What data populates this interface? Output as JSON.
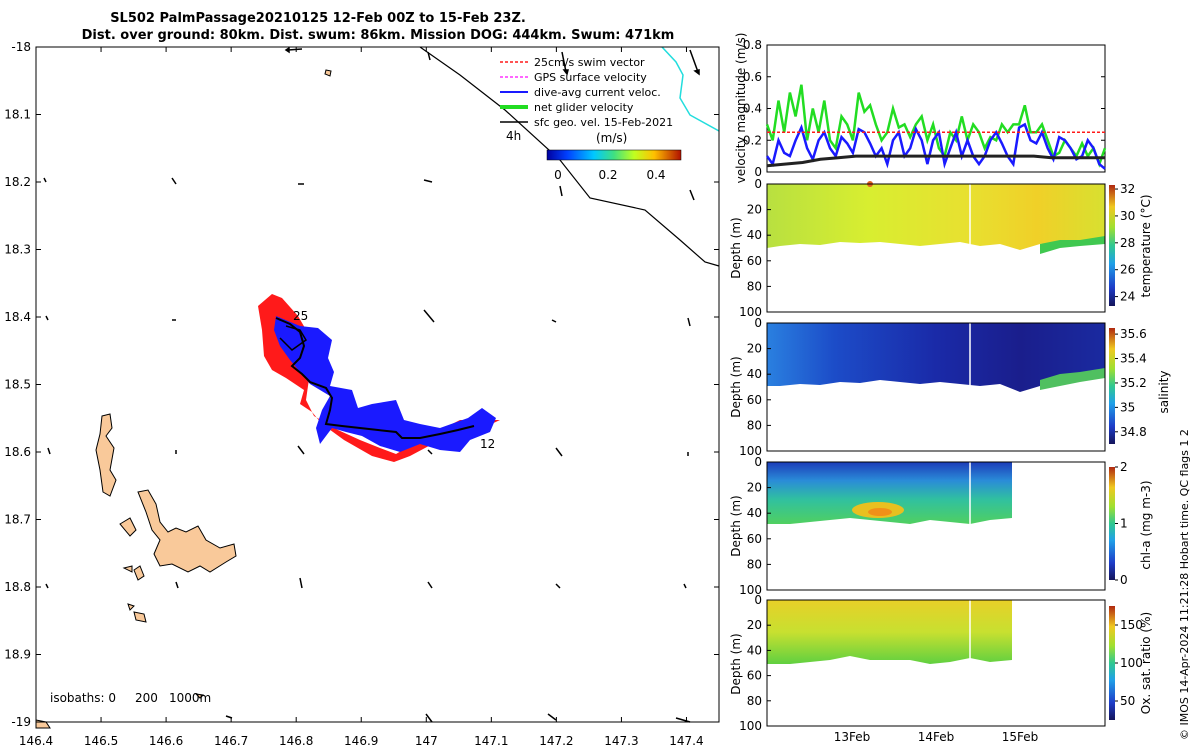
{
  "title_line1": "SL502 PalmPassage20210125 12-Feb 00Z to 15-Feb 23Z.",
  "title_line2": "Dist. over ground: 80km. Dist. swum: 86km. Mission DOG: 444km. Swum: 471km",
  "credit": "© IMOS 14-Apr-2024 11:21:28 Hobart time. QC flags 1  2",
  "colors": {
    "land": "#f9c99a",
    "red": "#ff1a1a",
    "blue": "#1a1aff",
    "green": "#22dd22",
    "cyan": "#22dddd",
    "magenta": "#ff33ff"
  },
  "map": {
    "x_ticks": [
      "146.4",
      "146.5",
      "146.6",
      "146.7",
      "146.8",
      "146.9",
      "147",
      "147.1",
      "147.2",
      "147.3",
      "147.4"
    ],
    "y_ticks": [
      "-18",
      "18.1",
      "18.2",
      "18.3",
      "18.4",
      "18.5",
      "18.6",
      "18.7",
      "18.8",
      "18.9",
      "-19"
    ],
    "xlim": [
      146.4,
      147.45
    ],
    "ylim": [
      -19.0,
      -17.98
    ],
    "legend": [
      {
        "label": "25cm/s swim vector",
        "color": "#ff1a1a",
        "style": "dashed"
      },
      {
        "label": "GPS surface velocity",
        "color": "#ff33ff",
        "style": "dashed"
      },
      {
        "label": "dive-avg current veloc.",
        "color": "#1a1aff",
        "style": "solid"
      },
      {
        "label": "net glider velocity",
        "color": "#22dd22",
        "style": "thick"
      },
      {
        "label": "sfc geo. vel. 15-Feb-2021",
        "color": "#000000",
        "style": "solid"
      }
    ],
    "colorbar_unit": "(m/s)",
    "colorbar_ticks": [
      "0",
      "0.2",
      "0.4"
    ],
    "annotations": {
      "start": "4h",
      "mid": "25",
      "end": "12"
    },
    "isobaths_label": "isobaths: 0",
    "isobath_levels": [
      "200",
      "1000m"
    ]
  },
  "chart_data": [
    {
      "type": "line",
      "title": "",
      "ylabel": "velocity magnitude (m/s)",
      "ylim": [
        0,
        0.8
      ],
      "y_ticks": [
        "0",
        "0.2",
        "0.4",
        "0.6",
        "0.8"
      ],
      "series": [
        {
          "name": "net glider velocity",
          "color": "#22dd22",
          "values": [
            0.3,
            0.2,
            0.45,
            0.25,
            0.5,
            0.35,
            0.55,
            0.2,
            0.4,
            0.25,
            0.45,
            0.2,
            0.15,
            0.35,
            0.3,
            0.2,
            0.5,
            0.38,
            0.42,
            0.3,
            0.2,
            0.25,
            0.4,
            0.28,
            0.3,
            0.22,
            0.3,
            0.35,
            0.2,
            0.3,
            0.15,
            0.1,
            0.25,
            0.2,
            0.35,
            0.2,
            0.3,
            0.25,
            0.15,
            0.22,
            0.2,
            0.3,
            0.25,
            0.3,
            0.3,
            0.42,
            0.25,
            0.25,
            0.3,
            0.2,
            0.1,
            0.12,
            0.2,
            0.15,
            0.1,
            0.18,
            0.1,
            0.15,
            0.05,
            0.15
          ]
        },
        {
          "name": "dive-avg current veloc.",
          "color": "#1a1aff",
          "values": [
            0.1,
            0.05,
            0.2,
            0.12,
            0.1,
            0.2,
            0.28,
            0.15,
            0.08,
            0.2,
            0.25,
            0.15,
            0.1,
            0.22,
            0.18,
            0.12,
            0.27,
            0.25,
            0.18,
            0.1,
            0.15,
            0.05,
            0.2,
            0.25,
            0.1,
            0.15,
            0.27,
            0.2,
            0.05,
            0.2,
            0.25,
            0.05,
            0.15,
            0.25,
            0.1,
            0.2,
            0.1,
            0.05,
            0.1,
            0.2,
            0.25,
            0.18,
            0.1,
            0.05,
            0.28,
            0.3,
            0.2,
            0.18,
            0.25,
            0.15,
            0.08,
            0.22,
            0.2,
            0.15,
            0.08,
            0.1,
            0.2,
            0.15,
            0.05,
            0.02
          ]
        },
        {
          "name": "25cm/s swim vector",
          "color": "#ff1a1a",
          "values": [
            0.25,
            0.25
          ]
        },
        {
          "name": "sfc geo",
          "color": "#222222",
          "values": [
            0.04,
            0.05,
            0.06,
            0.08,
            0.09,
            0.1,
            0.1,
            0.1,
            0.1,
            0.1,
            0.1,
            0.1,
            0.1,
            0.1,
            0.1,
            0.1,
            0.09,
            0.09,
            0.09,
            0.09
          ]
        }
      ]
    },
    {
      "type": "heatmap",
      "ylabel": "Depth (m)",
      "clabel": "temperature (°C)",
      "ylim": [
        0,
        100
      ],
      "y_ticks": [
        "0",
        "20",
        "40",
        "60",
        "80",
        "100"
      ],
      "c_ticks": [
        "24",
        "26",
        "28",
        "30",
        "32"
      ],
      "clim": [
        23.3,
        32.3
      ]
    },
    {
      "type": "heatmap",
      "ylabel": "Depth (m)",
      "clabel": "salinity",
      "ylim": [
        0,
        100
      ],
      "y_ticks": [
        "0",
        "20",
        "40",
        "60",
        "80",
        "100"
      ],
      "c_ticks": [
        "34.8",
        "35",
        "35.2",
        "35.4",
        "35.6"
      ],
      "clim": [
        34.7,
        35.65
      ]
    },
    {
      "type": "heatmap",
      "ylabel": "Depth (m)",
      "clabel": "chl-a (mg m-3)",
      "ylim": [
        0,
        100
      ],
      "y_ticks": [
        "0",
        "20",
        "40",
        "60",
        "80",
        "100"
      ],
      "c_ticks": [
        "0",
        "1",
        "2"
      ],
      "clim": [
        0,
        2
      ]
    },
    {
      "type": "heatmap",
      "ylabel": "Depth (m)",
      "clabel": "Ox. sat. ratio (%)",
      "ylim": [
        0,
        100
      ],
      "y_ticks": [
        "0",
        "20",
        "40",
        "60",
        "80",
        "100"
      ],
      "c_ticks": [
        "50",
        "100",
        "150"
      ],
      "clim": [
        25,
        175
      ],
      "x_ticks": [
        "13Feb",
        "14Feb",
        "15Feb"
      ]
    }
  ]
}
